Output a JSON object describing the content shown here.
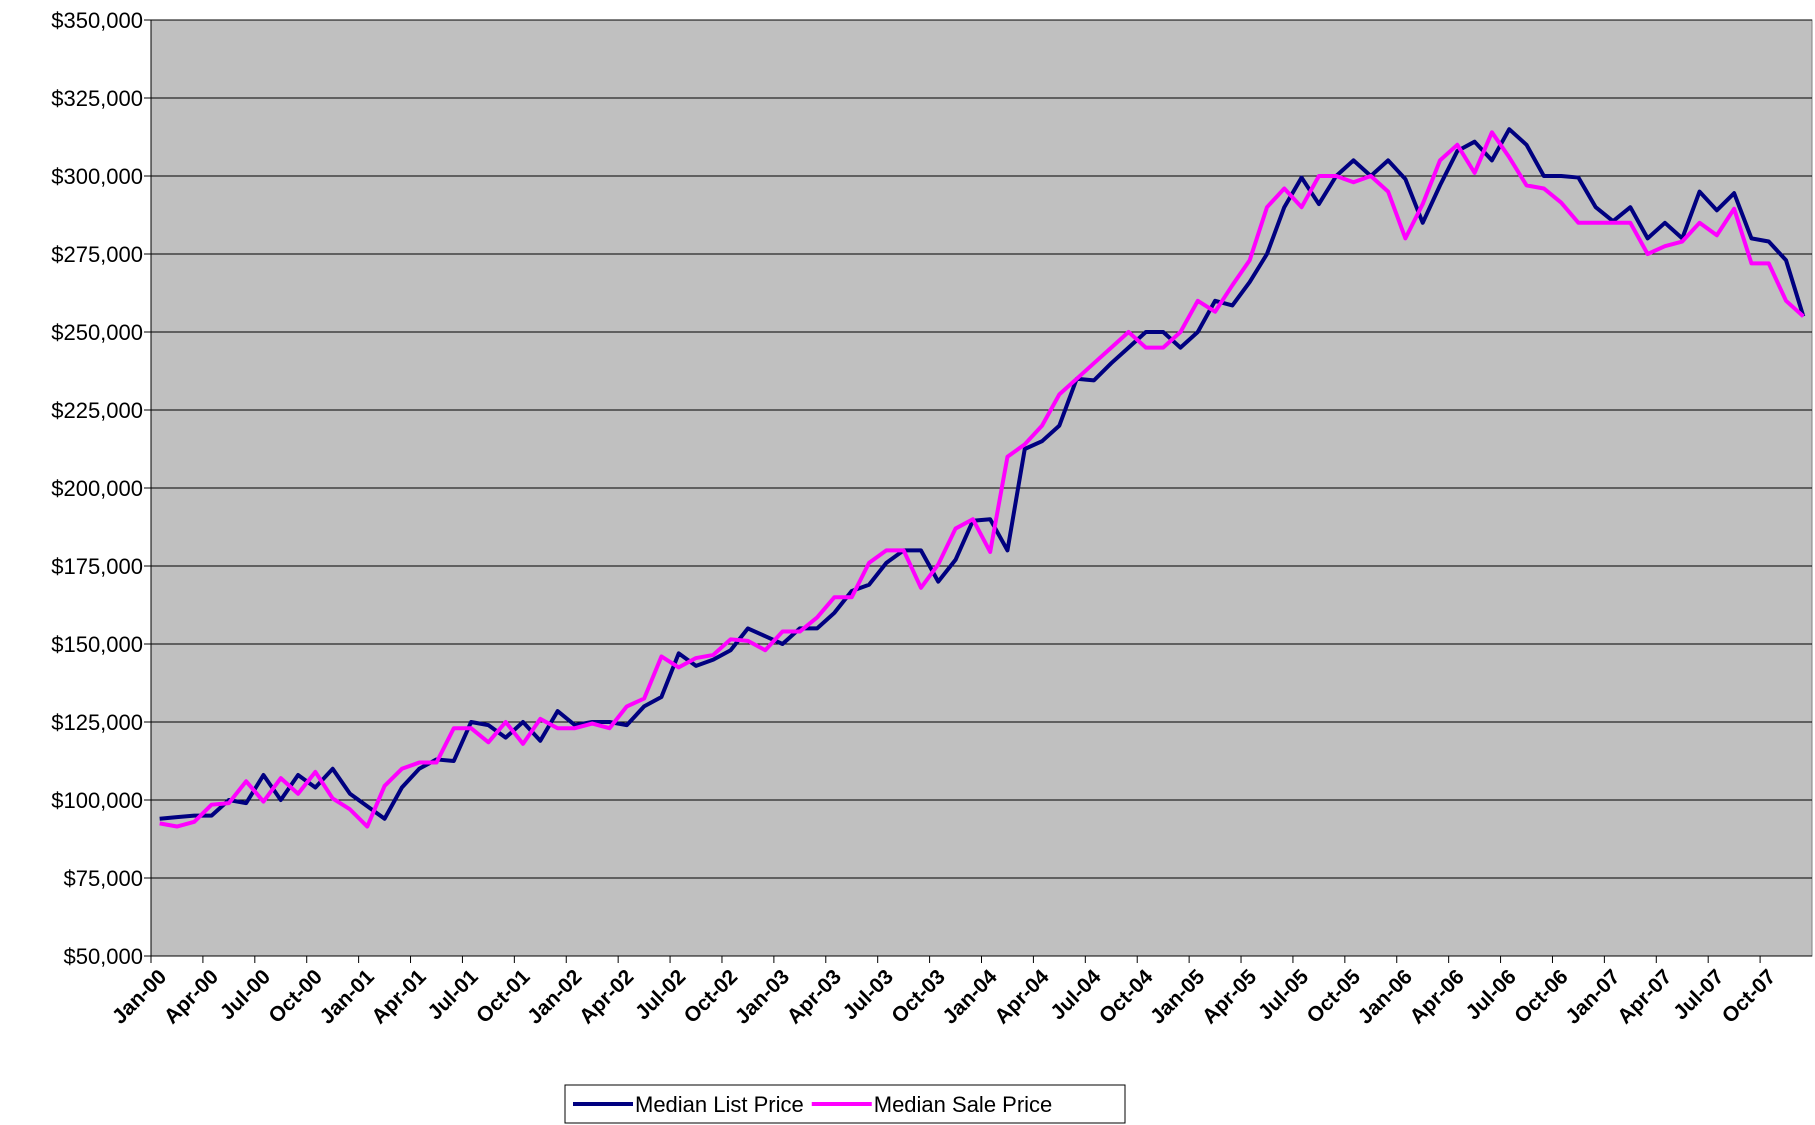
{
  "chart_data": {
    "type": "line",
    "categories": [
      "Jan-00",
      null,
      null,
      "Apr-00",
      null,
      null,
      "Jul-00",
      null,
      null,
      "Oct-00",
      null,
      null,
      "Jan-01",
      null,
      null,
      "Apr-01",
      null,
      null,
      "Jul-01",
      null,
      null,
      "Oct-01",
      null,
      null,
      "Jan-02",
      null,
      null,
      "Apr-02",
      null,
      null,
      "Jul-02",
      null,
      null,
      "Oct-02",
      null,
      null,
      "Jan-03",
      null,
      null,
      "Apr-03",
      null,
      null,
      "Jul-03",
      null,
      null,
      "Oct-03",
      null,
      null,
      "Jan-04",
      null,
      null,
      "Apr-04",
      null,
      null,
      "Jul-04",
      null,
      null,
      "Oct-04",
      null,
      null,
      "Jan-05",
      null,
      null,
      "Apr-05",
      null,
      null,
      "Jul-05",
      null,
      null,
      "Oct-05",
      null,
      null,
      "Jan-06",
      null,
      null,
      "Apr-06",
      null,
      null,
      "Jul-06",
      null,
      null,
      "Oct-06",
      null,
      null,
      "Jan-07",
      null,
      null,
      "Apr-07",
      null,
      null,
      "Jul-07",
      null,
      null,
      "Oct-07",
      null,
      null
    ],
    "series": [
      {
        "name": "Median List Price",
        "color": "#000080",
        "values": [
          94000,
          94500,
          95000,
          95000,
          100000,
          99000,
          108000,
          100000,
          108000,
          104000,
          110000,
          102000,
          98000,
          94000,
          104000,
          110000,
          113000,
          112500,
          125000,
          124000,
          120000,
          125000,
          119000,
          128500,
          124000,
          125000,
          125000,
          124000,
          130000,
          133000,
          147000,
          143000,
          145000,
          148000,
          155000,
          152500,
          150000,
          155000,
          155000,
          160000,
          167000,
          169000,
          176000,
          180000,
          180000,
          170000,
          177000,
          189500,
          190000,
          180000,
          212500,
          215000,
          220000,
          235000,
          234500,
          240000,
          245000,
          250000,
          250000,
          245000,
          250000,
          260000,
          258500,
          266000,
          275000,
          290000,
          299500,
          291000,
          300000,
          305000,
          300000,
          305000,
          299000,
          285000,
          297000,
          308000,
          311000,
          305000,
          315000,
          310000,
          300000,
          300000,
          299500,
          290000,
          285500,
          290000,
          280000,
          285000,
          280000,
          295000,
          289000,
          294500,
          280000,
          279000,
          273000,
          255000
        ]
      },
      {
        "name": "Median Sale Price",
        "color": "#ff00ff",
        "values": [
          92500,
          91500,
          93000,
          98500,
          99000,
          106000,
          99500,
          107000,
          102000,
          109000,
          100500,
          97000,
          91500,
          104500,
          110000,
          112000,
          112000,
          123000,
          123000,
          118500,
          125000,
          118000,
          126000,
          123000,
          123000,
          124500,
          123000,
          130000,
          132500,
          146000,
          142500,
          145500,
          146500,
          151500,
          151000,
          148000,
          154000,
          154000,
          158500,
          165000,
          165000,
          176000,
          180000,
          180000,
          168000,
          175500,
          187000,
          190000,
          179500,
          210000,
          214000,
          220000,
          230000,
          235000,
          240000,
          245000,
          250000,
          245000,
          245000,
          250000,
          260000,
          256500,
          265000,
          273000,
          290000,
          296000,
          290000,
          300000,
          300000,
          298000,
          300000,
          295000,
          280000,
          291000,
          305000,
          310000,
          301000,
          314000,
          306000,
          297000,
          296000,
          291500,
          285000,
          285000,
          285000,
          285000,
          275000,
          277500,
          279000,
          285000,
          281000,
          289500,
          272000,
          272000,
          260000,
          255000
        ]
      }
    ],
    "ylim": [
      50000,
      350000
    ],
    "yticks": [
      {
        "value": 50000,
        "label": "$50,000"
      },
      {
        "value": 75000,
        "label": "$75,000"
      },
      {
        "value": 100000,
        "label": "$100,000"
      },
      {
        "value": 125000,
        "label": "$125,000"
      },
      {
        "value": 150000,
        "label": "$150,000"
      },
      {
        "value": 175000,
        "label": "$175,000"
      },
      {
        "value": 200000,
        "label": "$200,000"
      },
      {
        "value": 225000,
        "label": "$225,000"
      },
      {
        "value": 250000,
        "label": "$250,000"
      },
      {
        "value": 275000,
        "label": "$275,000"
      },
      {
        "value": 300000,
        "label": "$300,000"
      },
      {
        "value": 325000,
        "label": "$325,000"
      },
      {
        "value": 350000,
        "label": "$350,000"
      }
    ],
    "grid": true,
    "plot_background": "#c0c0c0",
    "legend": "bottom"
  }
}
